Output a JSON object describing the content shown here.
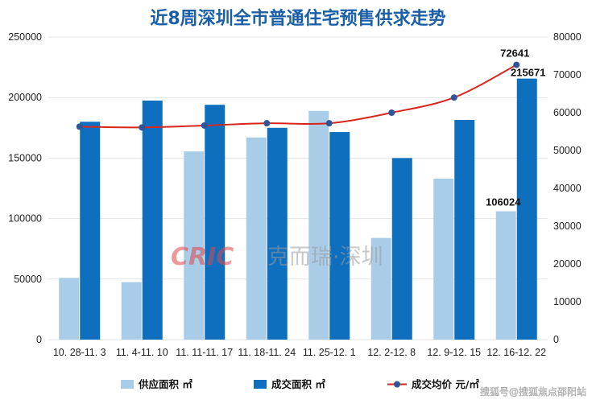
{
  "chart_data": {
    "type": "bar",
    "title": "近8周深圳全市普通住宅预售供求走势",
    "categories": [
      "10.28-11.3",
      "11.4-11.10",
      "11.11-11.17",
      "11.18-11.24",
      "11.25-12.1",
      "12.2-12.8",
      "12.9-12.15",
      "12.16-12.22"
    ],
    "categories_display": [
      "10. 28-11. 3",
      "11. 4-11. 10",
      "11. 11-11. 17",
      "11. 18-11. 24",
      "11. 25-12. 1",
      "12. 2-12. 8",
      "12. 9-12. 15",
      "12. 16-12. 22"
    ],
    "series": [
      {
        "name": "供应面积 ㎡",
        "type": "bar",
        "axis": "left",
        "color": "#a9cde8",
        "values": [
          51000,
          47500,
          155500,
          167000,
          189000,
          84000,
          133000,
          106024
        ]
      },
      {
        "name": "成交面积 ㎡",
        "type": "bar",
        "axis": "left",
        "color": "#0e6fbf",
        "values": [
          180000,
          197500,
          194000,
          175000,
          171500,
          150000,
          181500,
          215671
        ]
      },
      {
        "name": "成交均价 元/㎡",
        "type": "line",
        "axis": "right",
        "color": "#d7261e",
        "marker_color": "#2e5598",
        "values": [
          56300,
          56100,
          56600,
          57200,
          57200,
          60000,
          64000,
          72641
        ]
      }
    ],
    "ylim_left": [
      0,
      250000
    ],
    "ylim_right": [
      0,
      80000
    ],
    "yticks_left": [
      "0",
      "50000",
      "100000",
      "150000",
      "200000",
      "250000"
    ],
    "yticks_right": [
      "0",
      "10000",
      "20000",
      "30000",
      "40000",
      "50000",
      "60000",
      "70000",
      "80000"
    ],
    "data_labels": [
      {
        "series": 0,
        "index": 7,
        "text": "106024"
      },
      {
        "series": 1,
        "index": 7,
        "text": "215671"
      },
      {
        "series": 2,
        "index": 7,
        "text": "72641"
      }
    ],
    "grid": true,
    "legend": "bottom",
    "colors": {
      "title": "#1a5fa8",
      "grid": "#e3e3e3"
    }
  },
  "watermark": {
    "logo": "CRIC",
    "text": "克而瑞·深圳"
  },
  "credit": "搜狐号@搜狐焦点邵阳站"
}
